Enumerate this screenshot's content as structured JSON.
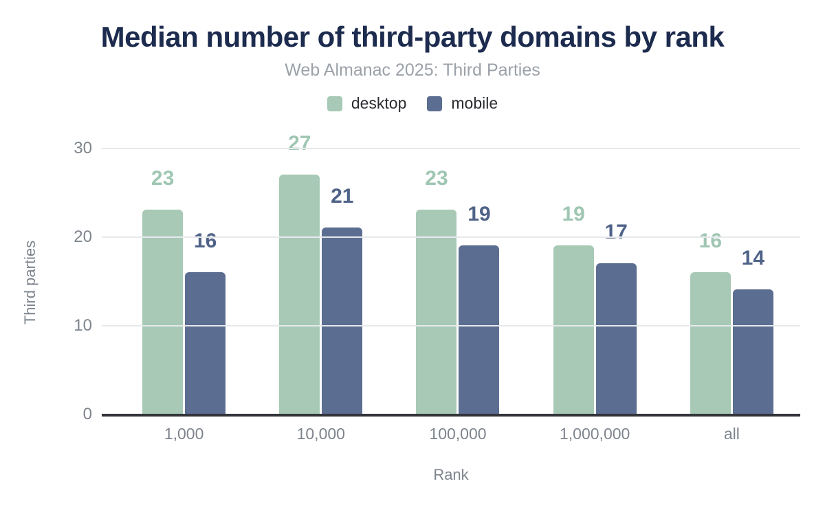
{
  "page": {
    "title": "Median number of third-party domains by rank",
    "subtitle": "Web Almanac 2025: Third Parties"
  },
  "chart_data": {
    "type": "bar",
    "title": "Median number of third-party domains by rank",
    "subtitle": "Web Almanac 2025: Third Parties",
    "categories": [
      "1,000",
      "10,000",
      "100,000",
      "1,000,000",
      "all"
    ],
    "series": [
      {
        "name": "desktop",
        "color": "#a7c9b5",
        "label_color": "#9fc6b2",
        "values": [
          23,
          27,
          23,
          19,
          16
        ]
      },
      {
        "name": "mobile",
        "color": "#5b6d91",
        "label_color": "#4f6288",
        "values": [
          16,
          21,
          19,
          17,
          14
        ]
      }
    ],
    "xlabel": "Rank",
    "ylabel": "Third parties",
    "yticks": [
      0,
      10,
      20,
      30
    ],
    "ylim": [
      0,
      33
    ],
    "grid": "horizontal",
    "legend_position": "top",
    "value_labels": "above bars"
  },
  "colors": {
    "background": "#ffffff",
    "title": "#1c2b4e",
    "subtitle": "#9ba1a8",
    "legend_text": "#2a2c30",
    "axis_text": "#7e848d",
    "gridline": "#e7e9ec",
    "axis_line": "#33343a",
    "desktop": "#a7c9b5",
    "mobile": "#5b6d91"
  }
}
